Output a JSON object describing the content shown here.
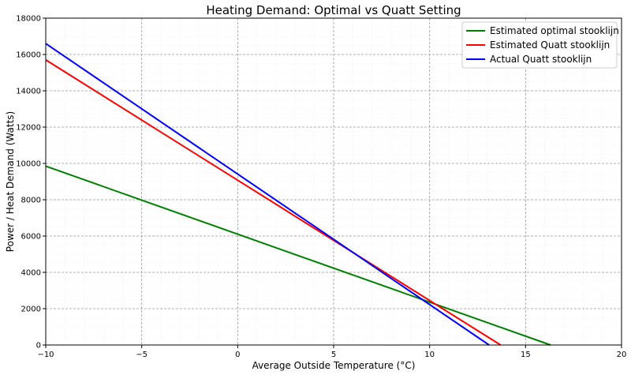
{
  "chart_data": {
    "type": "line",
    "title": "Heating Demand: Optimal vs Quatt Setting",
    "xlabel": "Average Outside Temperature (°C)",
    "ylabel": "Power / Heat Demand (Watts)",
    "xlim": [
      -10,
      20
    ],
    "ylim": [
      0,
      18000
    ],
    "xticks": [
      -10,
      -5,
      0,
      5,
      10,
      15,
      20
    ],
    "yticks": [
      0,
      2000,
      4000,
      6000,
      8000,
      10000,
      12000,
      14000,
      16000,
      18000
    ],
    "grid": true,
    "legend_position": "top-right",
    "series": [
      {
        "name": "Estimated optimal stooklijn",
        "color": "#008000",
        "x": [
          -10,
          16.3
        ],
        "y": [
          9850,
          0
        ]
      },
      {
        "name": "Estimated Quatt stooklijn",
        "color": "#ff0000",
        "x": [
          -10,
          13.7
        ],
        "y": [
          15700,
          0
        ]
      },
      {
        "name": "Actual Quatt stooklijn",
        "color": "#0000ff",
        "x": [
          -10,
          13.1
        ],
        "y": [
          16600,
          0
        ]
      }
    ]
  }
}
